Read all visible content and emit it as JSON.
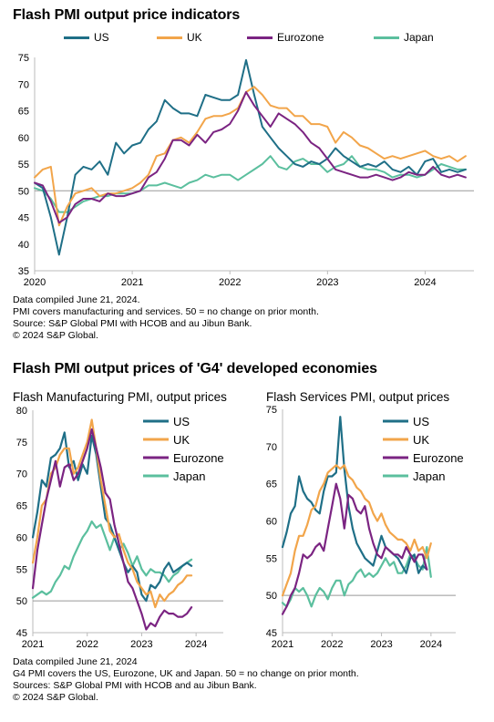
{
  "colors": {
    "US": "#1f6f87",
    "UK": "#f2a54a",
    "Eurozone": "#7b2482",
    "Japan": "#5bbf9e",
    "zero": "#999999"
  },
  "top": {
    "title": "Flash PMI output price indicators",
    "legend": [
      "US",
      "UK",
      "Eurozone",
      "Japan"
    ],
    "notes": [
      "Data compiled June 21, 2024.",
      "PMI covers manufacturing and services. 50 = no change on prior month.",
      "Source: S&P Global PMI with HCOB and au Jibun Bank.",
      "© 2024 S&P Global."
    ]
  },
  "bottom": {
    "title": "Flash PMI output prices of 'G4' developed economies",
    "notes": [
      "Data compiled June 21, 2024",
      "G4 PMI covers the US, Eurozone, UK and Japan. 50 = no change on prior month.",
      "Sources: S&P Global PMI with HCOB and au Jibun Bank.",
      "© 2024 S&P Global."
    ]
  },
  "chart_data": [
    {
      "type": "line",
      "title": "Flash PMI output price indicators",
      "xlabel": "",
      "ylabel": "",
      "x_ticks": [
        "2020",
        "2021",
        "2022",
        "2023",
        "2024"
      ],
      "x_range": [
        2020.0,
        2024.5
      ],
      "ylim": [
        35,
        75
      ],
      "y_ticks": [
        35,
        40,
        45,
        50,
        55,
        60,
        65,
        70,
        75
      ],
      "reference_line": 50,
      "grid": false,
      "legend_position": "top",
      "series": [
        {
          "name": "US",
          "x_start": 2020.0,
          "x_step": 0.0833,
          "values": [
            51.5,
            50.5,
            45,
            38,
            45,
            53,
            54.5,
            54,
            55.5,
            53,
            59,
            57,
            58.5,
            59,
            61.5,
            63,
            67,
            65.5,
            64.5,
            64.5,
            64,
            68,
            67.5,
            67,
            67,
            68,
            74.5,
            68,
            62,
            60,
            58,
            56.5,
            55,
            54.5,
            55.5,
            55,
            56,
            58,
            56.5,
            55.5,
            54.5,
            55,
            54.5,
            55.5,
            54,
            53.5,
            54.5,
            53,
            55.5,
            56,
            53.5,
            54,
            53.5,
            54
          ]
        },
        {
          "name": "UK",
          "x_start": 2020.0,
          "x_step": 0.0833,
          "values": [
            52.5,
            54,
            54.5,
            43.5,
            47,
            49.5,
            50,
            50.5,
            49,
            49.5,
            49.5,
            50,
            50.5,
            51.5,
            53,
            56.5,
            57,
            59.5,
            60,
            59,
            61,
            63.5,
            64,
            64,
            64.5,
            65.5,
            68.5,
            69.5,
            68,
            66,
            65.5,
            65.5,
            64,
            64,
            62.5,
            62.5,
            62,
            59,
            61,
            60,
            58.5,
            58,
            57,
            56,
            56.5,
            56,
            56.5,
            57,
            57.5,
            56.5,
            56,
            56.5,
            55.5,
            56.5
          ]
        },
        {
          "name": "Eurozone",
          "x_start": 2020.0,
          "x_step": 0.0833,
          "values": [
            51.5,
            51,
            48,
            44,
            45,
            47.5,
            48.5,
            48.5,
            48,
            49.5,
            49,
            49,
            49.5,
            50,
            52.5,
            53.5,
            56,
            59.5,
            59.5,
            58.5,
            60.5,
            59,
            61,
            61.5,
            62.5,
            65,
            68.5,
            66,
            64,
            62,
            64.5,
            63.5,
            62.5,
            61,
            59,
            58,
            56,
            54,
            53.5,
            53,
            52.5,
            52.5,
            53,
            52.5,
            52,
            52.5,
            53.5,
            53,
            53,
            54.5,
            53,
            52.5,
            53,
            52.5
          ]
        },
        {
          "name": "Japan",
          "x_start": 2020.0,
          "x_step": 0.0833,
          "values": [
            50.5,
            50,
            48.5,
            46,
            46,
            47,
            48,
            48.5,
            49,
            49,
            49.5,
            49.5,
            49.5,
            50,
            51,
            51,
            51.5,
            51,
            50.5,
            51.5,
            52,
            53,
            52.5,
            53,
            53,
            52,
            53,
            54,
            55,
            56.5,
            54.5,
            54,
            55.5,
            56,
            55,
            55,
            53.5,
            54.5,
            55,
            56.5,
            54.5,
            54,
            54,
            53.5,
            52.5,
            53,
            53,
            52.5,
            53,
            54,
            55,
            54.5,
            54,
            54
          ]
        }
      ]
    },
    {
      "type": "line",
      "title": "Flash Manufacturing PMI, output prices",
      "xlabel": "",
      "ylabel": "",
      "x_ticks": [
        "2021",
        "2022",
        "2023",
        "2024"
      ],
      "x_range": [
        2021.0,
        2024.5
      ],
      "ylim": [
        45,
        80
      ],
      "y_ticks": [
        45,
        50,
        55,
        60,
        65,
        70,
        75,
        80
      ],
      "reference_line": 50,
      "grid": false,
      "legend_position": "top-right",
      "series": [
        {
          "name": "US",
          "x_start": 2021.0,
          "x_step": 0.0833,
          "values": [
            60,
            64,
            69,
            68,
            72.5,
            73,
            74,
            76.5,
            71,
            72,
            69,
            71.5,
            70,
            76,
            73,
            68,
            63,
            62,
            60,
            58,
            56,
            54.5,
            55.5,
            54.5,
            51,
            50,
            52.5,
            52,
            53,
            55,
            56,
            54.5,
            55,
            55.5,
            56,
            55.5
          ]
        },
        {
          "name": "UK",
          "x_start": 2021.0,
          "x_step": 0.0833,
          "values": [
            56,
            60,
            65,
            66,
            70,
            71,
            73,
            74,
            74,
            70,
            71,
            73,
            75,
            78.5,
            74,
            69,
            65,
            61,
            60,
            60.5,
            58,
            56,
            55,
            53,
            52,
            51,
            51.5,
            49,
            51,
            50,
            51,
            51.5,
            52.5,
            53,
            54,
            54
          ]
        },
        {
          "name": "Eurozone",
          "x_start": 2021.0,
          "x_step": 0.0833,
          "values": [
            52,
            58,
            62,
            66,
            69,
            72,
            68,
            71,
            71.5,
            69,
            70,
            72,
            74,
            77,
            74,
            71,
            67,
            66,
            62,
            59,
            56,
            53,
            52,
            50,
            48,
            45.5,
            46.5,
            46,
            47.5,
            48.5,
            48,
            48,
            47.5,
            47.5,
            48,
            49
          ]
        },
        {
          "name": "Japan",
          "x_start": 2021.0,
          "x_step": 0.0833,
          "values": [
            50.5,
            51,
            51.5,
            51,
            51.5,
            53,
            54,
            55.5,
            55,
            57,
            58.5,
            60,
            61,
            62.5,
            61.5,
            62,
            60,
            58,
            60,
            58,
            59,
            57.5,
            55.5,
            57,
            55,
            54,
            55,
            54.5,
            54.5,
            54,
            53,
            54,
            54.5,
            55.5,
            56,
            56.5
          ]
        }
      ]
    },
    {
      "type": "line",
      "title": "Flash Services PMI, output prices",
      "xlabel": "",
      "ylabel": "",
      "x_ticks": [
        "2021",
        "2022",
        "2023",
        "2024"
      ],
      "x_range": [
        2021.0,
        2024.5
      ],
      "ylim": [
        45,
        75
      ],
      "y_ticks": [
        45,
        50,
        55,
        60,
        65,
        70,
        75
      ],
      "reference_line": 50,
      "grid": false,
      "legend_position": "top-right",
      "series": [
        {
          "name": "US",
          "x_start": 2021.0,
          "x_step": 0.0833,
          "values": [
            56.5,
            58.5,
            61,
            62,
            66,
            64,
            63,
            62.5,
            61.5,
            61,
            64,
            66,
            66,
            66.5,
            74,
            67,
            62,
            59,
            57,
            56,
            55,
            54.5,
            54,
            56,
            58,
            56.5,
            56,
            55.5,
            55,
            54,
            53,
            55,
            55.5,
            53,
            54,
            53.5
          ]
        },
        {
          "name": "UK",
          "x_start": 2021.0,
          "x_step": 0.0833,
          "values": [
            50,
            51.5,
            53,
            56,
            58,
            58,
            59.5,
            61.5,
            62,
            64,
            65,
            66.5,
            67,
            67.5,
            67,
            67.5,
            66,
            65.5,
            64.5,
            64,
            63,
            62.5,
            61,
            60,
            61,
            59.5,
            58.5,
            58,
            57.5,
            57.5,
            57,
            56,
            57.5,
            56,
            56.5,
            55,
            57
          ]
        },
        {
          "name": "Eurozone",
          "x_start": 2021.0,
          "x_step": 0.0833,
          "values": [
            47.5,
            48.5,
            50,
            51,
            53,
            55.5,
            55,
            55.5,
            56.5,
            57,
            56,
            59,
            62,
            65,
            63,
            59,
            63.5,
            63,
            61.5,
            61,
            62,
            59,
            57,
            55.5,
            55,
            56.5,
            56,
            55.5,
            55.5,
            55,
            56.5,
            55.5,
            54.5,
            55.5,
            55.5,
            53.5
          ]
        },
        {
          "name": "Japan",
          "x_start": 2021.0,
          "x_step": 0.0833,
          "values": [
            49,
            48.5,
            49.5,
            51,
            50.5,
            51,
            50,
            48.5,
            50,
            51,
            50.5,
            49.5,
            51,
            52,
            52,
            50,
            51.5,
            52,
            53,
            53.5,
            52.5,
            53,
            52.5,
            53,
            54,
            55,
            54,
            54.5,
            53,
            53,
            54,
            55.5,
            55,
            54,
            53.5,
            56.5,
            52.5
          ]
        }
      ]
    }
  ]
}
